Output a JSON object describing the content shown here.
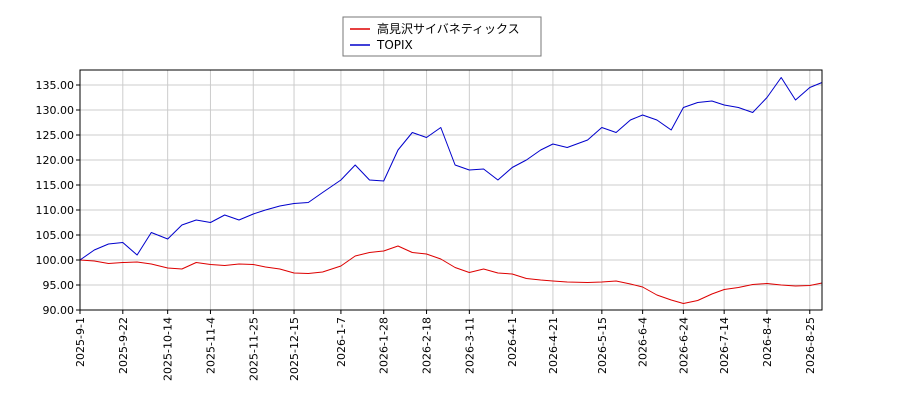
{
  "chart_data": {
    "type": "line",
    "title": "",
    "xlabel": "",
    "ylabel": "",
    "ylim": [
      90.0,
      138.0
    ],
    "y_ticks": [
      "90.00",
      "95.00",
      "100.00",
      "105.00",
      "110.00",
      "115.00",
      "120.00",
      "125.00",
      "130.00",
      "135.00"
    ],
    "x_tick_labels": [
      "2025-9-1",
      "2025-9-22",
      "2025-10-14",
      "2025-11-4",
      "2025-11-25",
      "2025-12-15",
      "2026-1-7",
      "2026-1-28",
      "2026-2-18",
      "2026-3-11",
      "2026-4-1",
      "2026-4-21",
      "2026-5-15",
      "2026-6-4",
      "2026-6-24",
      "2026-7-14",
      "2026-8-4",
      "2026-8-25"
    ],
    "grid": true,
    "legend_position": "top-center",
    "series": [
      {
        "name": "高見沢サイバネティックス",
        "color": "#dd0000",
        "x": [
          "2025-9-1",
          "2025-9-8",
          "2025-9-15",
          "2025-9-22",
          "2025-9-29",
          "2025-10-6",
          "2025-10-14",
          "2025-10-21",
          "2025-10-28",
          "2025-11-4",
          "2025-11-11",
          "2025-11-18",
          "2025-11-25",
          "2025-12-1",
          "2025-12-8",
          "2025-12-15",
          "2025-12-22",
          "2025-12-29",
          "2026-1-7",
          "2026-1-14",
          "2026-1-21",
          "2026-1-28",
          "2026-2-4",
          "2026-2-11",
          "2026-2-18",
          "2026-2-25",
          "2026-3-4",
          "2026-3-11",
          "2026-3-18",
          "2026-3-25",
          "2026-4-1",
          "2026-4-8",
          "2026-4-15",
          "2026-4-21",
          "2026-4-28",
          "2026-5-8",
          "2026-5-15",
          "2026-5-22",
          "2026-5-29",
          "2026-6-4",
          "2026-6-11",
          "2026-6-18",
          "2026-6-24",
          "2026-7-1",
          "2026-7-8",
          "2026-7-14",
          "2026-7-21",
          "2026-7-28",
          "2026-8-4",
          "2026-8-11",
          "2026-8-18",
          "2026-8-25",
          "2026-8-31"
        ],
        "values": [
          100.0,
          99.8,
          99.3,
          99.5,
          99.6,
          99.2,
          98.4,
          98.2,
          99.5,
          99.1,
          98.9,
          99.2,
          99.1,
          98.6,
          98.2,
          97.4,
          97.3,
          97.6,
          98.8,
          100.8,
          101.5,
          101.8,
          102.8,
          101.5,
          101.2,
          100.2,
          98.5,
          97.5,
          98.2,
          97.4,
          97.2,
          96.3,
          96.0,
          95.8,
          95.6,
          95.5,
          95.6,
          95.8,
          95.2,
          94.6,
          93.0,
          92.0,
          91.3,
          91.9,
          93.2,
          94.1,
          94.5,
          95.1,
          95.3,
          95.0,
          94.8,
          94.9,
          95.4
        ]
      },
      {
        "name": "TOPIX",
        "color": "#0000cc",
        "x": [
          "2025-9-1",
          "2025-9-8",
          "2025-9-15",
          "2025-9-22",
          "2025-9-29",
          "2025-10-6",
          "2025-10-14",
          "2025-10-21",
          "2025-10-28",
          "2025-11-4",
          "2025-11-11",
          "2025-11-18",
          "2025-11-25",
          "2025-12-1",
          "2025-12-8",
          "2025-12-15",
          "2025-12-22",
          "2025-12-29",
          "2026-1-7",
          "2026-1-14",
          "2026-1-21",
          "2026-1-28",
          "2026-2-4",
          "2026-2-11",
          "2026-2-18",
          "2026-2-25",
          "2026-3-4",
          "2026-3-11",
          "2026-3-18",
          "2026-3-25",
          "2026-4-1",
          "2026-4-8",
          "2026-4-15",
          "2026-4-21",
          "2026-4-28",
          "2026-5-8",
          "2026-5-15",
          "2026-5-22",
          "2026-5-29",
          "2026-6-4",
          "2026-6-11",
          "2026-6-18",
          "2026-6-24",
          "2026-7-1",
          "2026-7-8",
          "2026-7-14",
          "2026-7-21",
          "2026-7-28",
          "2026-8-4",
          "2026-8-11",
          "2026-8-18",
          "2026-8-25",
          "2026-8-31"
        ],
        "values": [
          100.0,
          102.0,
          103.2,
          103.5,
          101.0,
          105.5,
          104.2,
          107.0,
          108.0,
          107.5,
          109.0,
          108.0,
          109.2,
          110.0,
          110.8,
          111.3,
          111.5,
          113.5,
          116.0,
          119.0,
          116.0,
          115.8,
          122.0,
          125.5,
          124.5,
          126.5,
          119.0,
          118.0,
          118.2,
          116.0,
          118.5,
          120.0,
          122.0,
          123.2,
          122.5,
          124.0,
          126.5,
          125.5,
          128.0,
          129.0,
          128.0,
          126.0,
          130.5,
          131.5,
          131.8,
          131.0,
          130.5,
          129.5,
          132.5,
          136.5,
          132.0,
          134.5,
          135.5
        ]
      }
    ]
  }
}
